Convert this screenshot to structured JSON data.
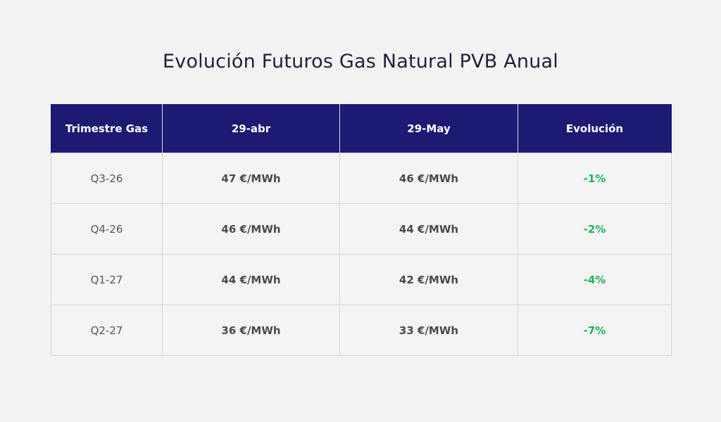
{
  "title": "Evolución Futuros Gas Natural PVB Anual",
  "colors": {
    "background": "#f3f3f3",
    "header_bg": "#1c1a72",
    "header_text": "#ffffff",
    "positive_change": "#1db35a"
  },
  "table": {
    "headers": [
      "Trimestre Gas",
      "29-abr",
      "29-May",
      "Evolución"
    ],
    "rows": [
      {
        "quarter": "Q3-26",
        "abr": "47 €/MWh",
        "may": "46 €/MWh",
        "change": "-1%"
      },
      {
        "quarter": "Q4-26",
        "abr": "46 €/MWh",
        "may": "44 €/MWh",
        "change": "-2%"
      },
      {
        "quarter": "Q1-27",
        "abr": "44 €/MWh",
        "may": "42 €/MWh",
        "change": "-4%"
      },
      {
        "quarter": "Q2-27",
        "abr": "36 €/MWh",
        "may": "33 €/MWh",
        "change": "-7%"
      }
    ]
  }
}
